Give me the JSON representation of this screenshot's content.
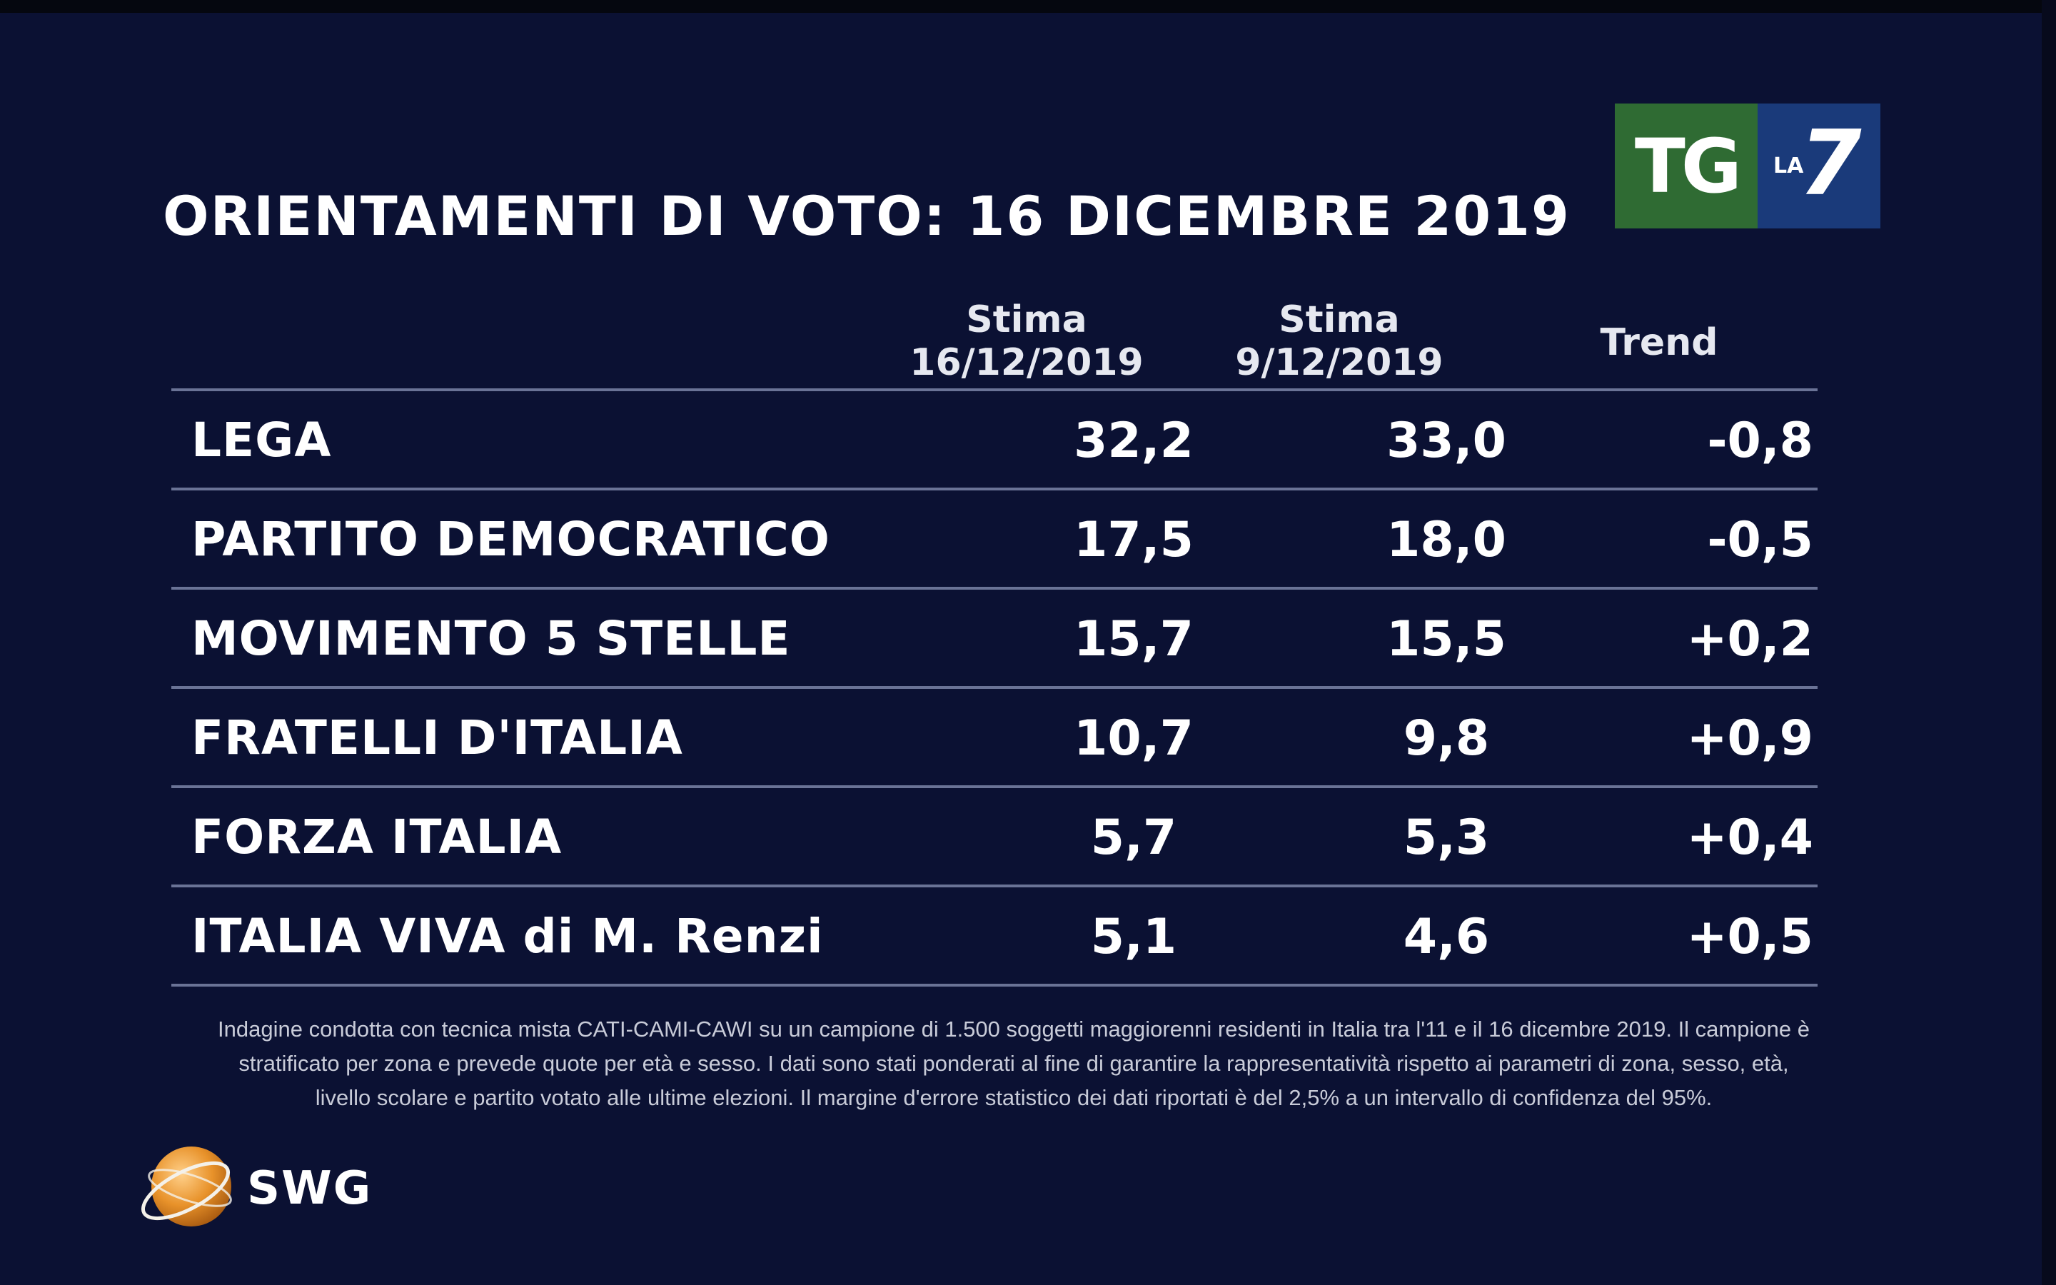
{
  "title": "ORIENTAMENTI DI VOTO: 16 DICEMBRE 2019",
  "logo": {
    "tg": "TG",
    "la": "LA",
    "seven": "7"
  },
  "columns": {
    "stima1_line1": "Stima",
    "stima1_line2": "16/12/2019",
    "stima2_line1": "Stima",
    "stima2_line2": "9/12/2019",
    "trend": "Trend"
  },
  "chart_data": {
    "type": "table",
    "title": "ORIENTAMENTI DI VOTO: 16 DICEMBRE 2019",
    "columns": [
      "Stima 16/12/2019",
      "Stima 9/12/2019",
      "Trend"
    ],
    "rows": [
      {
        "party": "LEGA",
        "stima_16_12": "32,2",
        "stima_9_12": "33,0",
        "trend": "-0,8"
      },
      {
        "party": "PARTITO DEMOCRATICO",
        "stima_16_12": "17,5",
        "stima_9_12": "18,0",
        "trend": "-0,5"
      },
      {
        "party": "MOVIMENTO 5 STELLE",
        "stima_16_12": "15,7",
        "stima_9_12": "15,5",
        "trend": "+0,2"
      },
      {
        "party": "FRATELLI D'ITALIA",
        "stima_16_12": "10,7",
        "stima_9_12": "9,8",
        "trend": "+0,9"
      },
      {
        "party": "FORZA ITALIA",
        "stima_16_12": "5,7",
        "stima_9_12": "5,3",
        "trend": "+0,4"
      },
      {
        "party": "ITALIA VIVA di M. Renzi",
        "stima_16_12": "5,1",
        "stima_9_12": "4,6",
        "trend": "+0,5"
      }
    ]
  },
  "note": {
    "line1": "Indagine condotta con tecnica mista CATI-CAMI-CAWI su un campione di 1.500 soggetti maggiorenni residenti in Italia tra l'11 e il 16 dicembre 2019. Il campione è",
    "line2": "stratificato per zona e prevede quote per età e sesso. I dati sono stati ponderati al fine di garantire la rappresentatività rispetto ai parametri di zona, sesso, età,",
    "line3": "livello scolare e partito votato alle ultime elezioni. Il margine d'errore statistico dei dati riportati è del 2,5% a un intervallo di confidenza del 95%."
  },
  "brand": {
    "name": "SWG"
  },
  "colors": {
    "background": "#0b1133",
    "tg_green": "#2f6b33",
    "la7_blue": "#1a3a7a",
    "rule": "#6a7396",
    "globe": "#e8922a"
  }
}
